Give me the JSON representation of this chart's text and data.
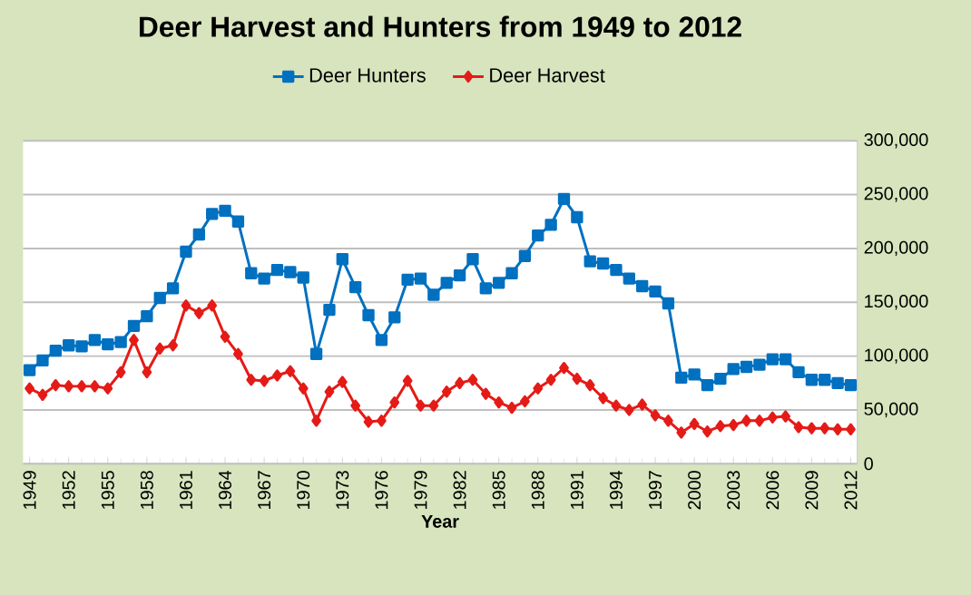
{
  "chart_data": {
    "type": "line",
    "title": "Deer Harvest and Hunters from 1949 to 2012",
    "xlabel": "Year",
    "categories": [
      "1949",
      null,
      null,
      "1952",
      null,
      null,
      "1955",
      null,
      null,
      "1958",
      null,
      null,
      "1961",
      null,
      null,
      "1964",
      null,
      null,
      "1967",
      null,
      null,
      "1970",
      null,
      null,
      "1973",
      null,
      null,
      "1976",
      null,
      null,
      "1979",
      null,
      null,
      "1982",
      null,
      null,
      "1985",
      null,
      null,
      "1988",
      null,
      null,
      "1991",
      null,
      null,
      "1994",
      null,
      null,
      "1997",
      null,
      null,
      "2000",
      null,
      null,
      "2003",
      null,
      null,
      "2006",
      null,
      null,
      "2009",
      null,
      null,
      "2012"
    ],
    "series": [
      {
        "name": "Deer Hunters",
        "color": "#0070c0",
        "marker": "square",
        "values": [
          87000,
          96000,
          105000,
          110000,
          109000,
          115000,
          111000,
          113000,
          128000,
          137000,
          154000,
          163000,
          197000,
          213000,
          232000,
          235000,
          225000,
          177000,
          172000,
          180000,
          178000,
          173000,
          102000,
          143000,
          190000,
          164000,
          138000,
          115000,
          136000,
          171000,
          172000,
          157000,
          168000,
          175000,
          190000,
          163000,
          168000,
          177000,
          193000,
          212000,
          222000,
          246000,
          229000,
          188000,
          186000,
          180000,
          172000,
          165000,
          160000,
          149000,
          80000,
          83000,
          73000,
          79000,
          88000,
          90000,
          92000,
          97000,
          97000,
          85000,
          78000,
          78000,
          75000,
          73000
        ]
      },
      {
        "name": "Deer Harvest",
        "color": "#e41b17",
        "marker": "diamond",
        "values": [
          70000,
          64000,
          73000,
          72000,
          72000,
          72000,
          70000,
          85000,
          115000,
          85000,
          107000,
          110000,
          147000,
          140000,
          147000,
          118000,
          102000,
          78000,
          77000,
          82000,
          86000,
          70000,
          40000,
          67000,
          76000,
          54000,
          39000,
          40000,
          57000,
          77000,
          54000,
          54000,
          67000,
          75000,
          78000,
          65000,
          57000,
          52000,
          58000,
          70000,
          78000,
          89000,
          79000,
          73000,
          61000,
          54000,
          50000,
          55000,
          45000,
          40000,
          29000,
          37000,
          30000,
          35000,
          36000,
          40000,
          40000,
          43000,
          44000,
          34000,
          33000,
          33000,
          32000,
          32000
        ]
      }
    ],
    "ylim": [
      0,
      300000
    ],
    "yticks": [
      {
        "value": 0,
        "label": "0"
      },
      {
        "value": 50000,
        "label": "50,000"
      },
      {
        "value": 100000,
        "label": "100,000"
      },
      {
        "value": 150000,
        "label": "150,000"
      },
      {
        "value": 200000,
        "label": "200,000"
      },
      {
        "value": 250000,
        "label": "250,000"
      },
      {
        "value": 300000,
        "label": "300,000"
      }
    ],
    "grid": "y",
    "legend": "top"
  }
}
